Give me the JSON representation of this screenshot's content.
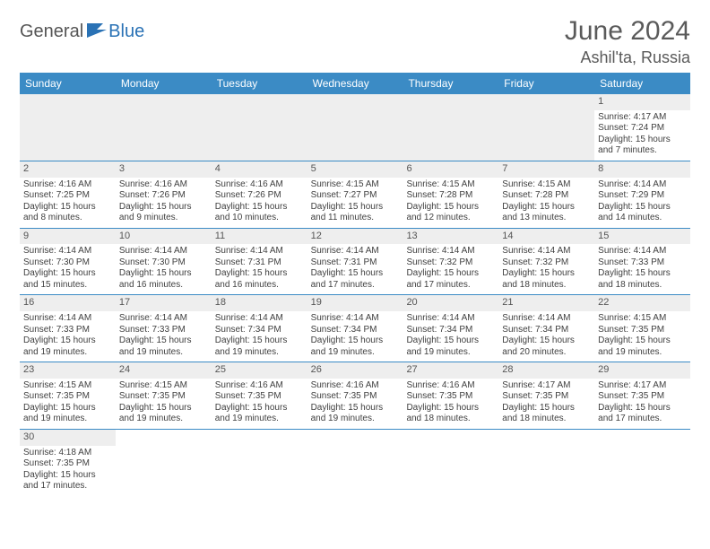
{
  "brand": {
    "part1": "General",
    "part2": "Blue"
  },
  "title": {
    "month": "June 2024",
    "location": "Ashil'ta, Russia"
  },
  "colors": {
    "header_bg": "#3b8bc5",
    "header_text": "#ffffff",
    "blank_bg": "#eeeeee",
    "border": "#3b8bc5",
    "text": "#404040",
    "brand_blue": "#2a72b5"
  },
  "weekdays": [
    "Sunday",
    "Monday",
    "Tuesday",
    "Wednesday",
    "Thursday",
    "Friday",
    "Saturday"
  ],
  "weeks": [
    [
      {
        "blank": true
      },
      {
        "blank": true
      },
      {
        "blank": true
      },
      {
        "blank": true
      },
      {
        "blank": true
      },
      {
        "blank": true
      },
      {
        "day": "1",
        "sunrise": "Sunrise: 4:17 AM",
        "sunset": "Sunset: 7:24 PM",
        "daylight1": "Daylight: 15 hours",
        "daylight2": "and 7 minutes."
      }
    ],
    [
      {
        "day": "2",
        "sunrise": "Sunrise: 4:16 AM",
        "sunset": "Sunset: 7:25 PM",
        "daylight1": "Daylight: 15 hours",
        "daylight2": "and 8 minutes."
      },
      {
        "day": "3",
        "sunrise": "Sunrise: 4:16 AM",
        "sunset": "Sunset: 7:26 PM",
        "daylight1": "Daylight: 15 hours",
        "daylight2": "and 9 minutes."
      },
      {
        "day": "4",
        "sunrise": "Sunrise: 4:16 AM",
        "sunset": "Sunset: 7:26 PM",
        "daylight1": "Daylight: 15 hours",
        "daylight2": "and 10 minutes."
      },
      {
        "day": "5",
        "sunrise": "Sunrise: 4:15 AM",
        "sunset": "Sunset: 7:27 PM",
        "daylight1": "Daylight: 15 hours",
        "daylight2": "and 11 minutes."
      },
      {
        "day": "6",
        "sunrise": "Sunrise: 4:15 AM",
        "sunset": "Sunset: 7:28 PM",
        "daylight1": "Daylight: 15 hours",
        "daylight2": "and 12 minutes."
      },
      {
        "day": "7",
        "sunrise": "Sunrise: 4:15 AM",
        "sunset": "Sunset: 7:28 PM",
        "daylight1": "Daylight: 15 hours",
        "daylight2": "and 13 minutes."
      },
      {
        "day": "8",
        "sunrise": "Sunrise: 4:14 AM",
        "sunset": "Sunset: 7:29 PM",
        "daylight1": "Daylight: 15 hours",
        "daylight2": "and 14 minutes."
      }
    ],
    [
      {
        "day": "9",
        "sunrise": "Sunrise: 4:14 AM",
        "sunset": "Sunset: 7:30 PM",
        "daylight1": "Daylight: 15 hours",
        "daylight2": "and 15 minutes."
      },
      {
        "day": "10",
        "sunrise": "Sunrise: 4:14 AM",
        "sunset": "Sunset: 7:30 PM",
        "daylight1": "Daylight: 15 hours",
        "daylight2": "and 16 minutes."
      },
      {
        "day": "11",
        "sunrise": "Sunrise: 4:14 AM",
        "sunset": "Sunset: 7:31 PM",
        "daylight1": "Daylight: 15 hours",
        "daylight2": "and 16 minutes."
      },
      {
        "day": "12",
        "sunrise": "Sunrise: 4:14 AM",
        "sunset": "Sunset: 7:31 PM",
        "daylight1": "Daylight: 15 hours",
        "daylight2": "and 17 minutes."
      },
      {
        "day": "13",
        "sunrise": "Sunrise: 4:14 AM",
        "sunset": "Sunset: 7:32 PM",
        "daylight1": "Daylight: 15 hours",
        "daylight2": "and 17 minutes."
      },
      {
        "day": "14",
        "sunrise": "Sunrise: 4:14 AM",
        "sunset": "Sunset: 7:32 PM",
        "daylight1": "Daylight: 15 hours",
        "daylight2": "and 18 minutes."
      },
      {
        "day": "15",
        "sunrise": "Sunrise: 4:14 AM",
        "sunset": "Sunset: 7:33 PM",
        "daylight1": "Daylight: 15 hours",
        "daylight2": "and 18 minutes."
      }
    ],
    [
      {
        "day": "16",
        "sunrise": "Sunrise: 4:14 AM",
        "sunset": "Sunset: 7:33 PM",
        "daylight1": "Daylight: 15 hours",
        "daylight2": "and 19 minutes."
      },
      {
        "day": "17",
        "sunrise": "Sunrise: 4:14 AM",
        "sunset": "Sunset: 7:33 PM",
        "daylight1": "Daylight: 15 hours",
        "daylight2": "and 19 minutes."
      },
      {
        "day": "18",
        "sunrise": "Sunrise: 4:14 AM",
        "sunset": "Sunset: 7:34 PM",
        "daylight1": "Daylight: 15 hours",
        "daylight2": "and 19 minutes."
      },
      {
        "day": "19",
        "sunrise": "Sunrise: 4:14 AM",
        "sunset": "Sunset: 7:34 PM",
        "daylight1": "Daylight: 15 hours",
        "daylight2": "and 19 minutes."
      },
      {
        "day": "20",
        "sunrise": "Sunrise: 4:14 AM",
        "sunset": "Sunset: 7:34 PM",
        "daylight1": "Daylight: 15 hours",
        "daylight2": "and 19 minutes."
      },
      {
        "day": "21",
        "sunrise": "Sunrise: 4:14 AM",
        "sunset": "Sunset: 7:34 PM",
        "daylight1": "Daylight: 15 hours",
        "daylight2": "and 20 minutes."
      },
      {
        "day": "22",
        "sunrise": "Sunrise: 4:15 AM",
        "sunset": "Sunset: 7:35 PM",
        "daylight1": "Daylight: 15 hours",
        "daylight2": "and 19 minutes."
      }
    ],
    [
      {
        "day": "23",
        "sunrise": "Sunrise: 4:15 AM",
        "sunset": "Sunset: 7:35 PM",
        "daylight1": "Daylight: 15 hours",
        "daylight2": "and 19 minutes."
      },
      {
        "day": "24",
        "sunrise": "Sunrise: 4:15 AM",
        "sunset": "Sunset: 7:35 PM",
        "daylight1": "Daylight: 15 hours",
        "daylight2": "and 19 minutes."
      },
      {
        "day": "25",
        "sunrise": "Sunrise: 4:16 AM",
        "sunset": "Sunset: 7:35 PM",
        "daylight1": "Daylight: 15 hours",
        "daylight2": "and 19 minutes."
      },
      {
        "day": "26",
        "sunrise": "Sunrise: 4:16 AM",
        "sunset": "Sunset: 7:35 PM",
        "daylight1": "Daylight: 15 hours",
        "daylight2": "and 19 minutes."
      },
      {
        "day": "27",
        "sunrise": "Sunrise: 4:16 AM",
        "sunset": "Sunset: 7:35 PM",
        "daylight1": "Daylight: 15 hours",
        "daylight2": "and 18 minutes."
      },
      {
        "day": "28",
        "sunrise": "Sunrise: 4:17 AM",
        "sunset": "Sunset: 7:35 PM",
        "daylight1": "Daylight: 15 hours",
        "daylight2": "and 18 minutes."
      },
      {
        "day": "29",
        "sunrise": "Sunrise: 4:17 AM",
        "sunset": "Sunset: 7:35 PM",
        "daylight1": "Daylight: 15 hours",
        "daylight2": "and 17 minutes."
      }
    ],
    [
      {
        "day": "30",
        "sunrise": "Sunrise: 4:18 AM",
        "sunset": "Sunset: 7:35 PM",
        "daylight1": "Daylight: 15 hours",
        "daylight2": "and 17 minutes."
      },
      {
        "blank": true
      },
      {
        "blank": true
      },
      {
        "blank": true
      },
      {
        "blank": true
      },
      {
        "blank": true
      },
      {
        "blank": true
      }
    ]
  ]
}
